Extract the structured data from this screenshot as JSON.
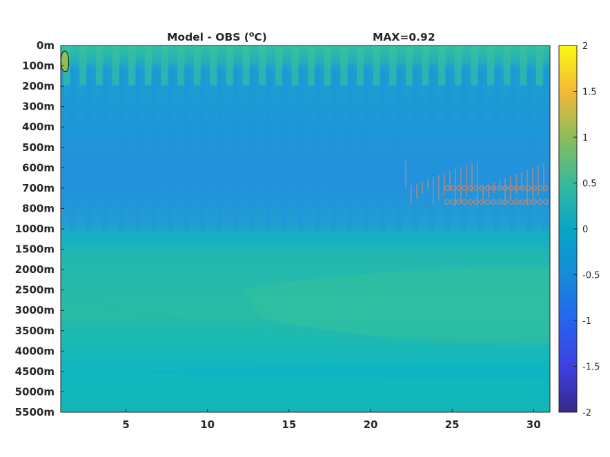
{
  "chart_data": {
    "type": "heatmap",
    "title": "Model - OBS (",
    "title_unit_sup": "o",
    "title_unit_rest": "C)",
    "max_label": "MAX=0.92",
    "x_ticks": [
      5,
      10,
      15,
      20,
      25,
      30
    ],
    "x_range": [
      1,
      31
    ],
    "y_tick_labels": [
      "0m",
      "100m",
      "200m",
      "300m",
      "400m",
      "500m",
      "600m",
      "700m",
      "800m",
      "1000m",
      "1500m",
      "2000m",
      "2500m",
      "3000m",
      "3500m",
      "4000m",
      "4500m",
      "5000m",
      "5500m"
    ],
    "colorbar": {
      "range": [
        -2,
        2
      ],
      "ticks": [
        2,
        1.5,
        1,
        0.5,
        0,
        -0.5,
        -1,
        -1.5,
        -2
      ],
      "tick_labels": [
        "2",
        "1.5",
        "1",
        "0.5",
        "0",
        "-0.5",
        "-1",
        "-1.5",
        "-2"
      ],
      "colormap": "parula"
    },
    "approx_values_by_depth": [
      {
        "depth": "0m",
        "value": 0.3
      },
      {
        "depth": "100m",
        "value": 0.1
      },
      {
        "depth": "200m",
        "value": -0.3
      },
      {
        "depth": "500m",
        "value": -0.45
      },
      {
        "depth": "700m",
        "value": -0.5
      },
      {
        "depth": "1000m",
        "value": -0.15
      },
      {
        "depth": "1500m",
        "value": 0.05
      },
      {
        "depth": "2500m",
        "value": 0.15
      },
      {
        "depth": "3000m",
        "value": 0.2
      },
      {
        "depth": "4500m",
        "value": 0.0
      },
      {
        "depth": "5500m",
        "value": 0.05
      }
    ],
    "max_value": 0.92
  }
}
